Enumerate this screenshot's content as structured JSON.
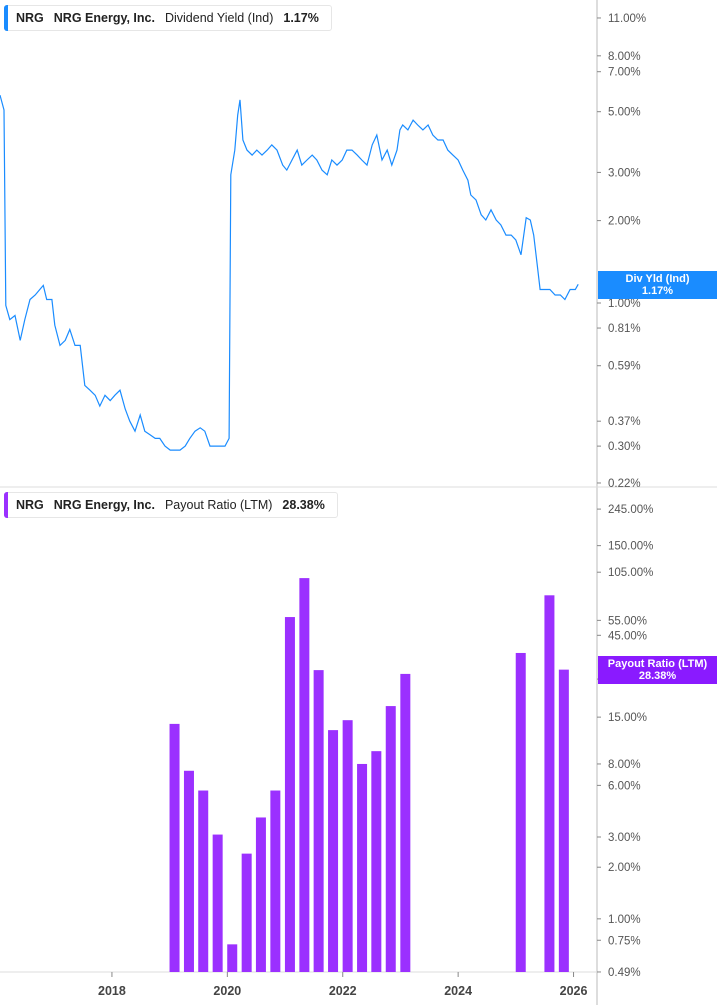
{
  "colors": {
    "line": "#1a8cff",
    "bars": "#9b30ff",
    "tag_line": "#1a8cff",
    "tag_bars": "#8a1aff"
  },
  "top_legend": {
    "ticker": "NRG",
    "company": "NRG Energy, Inc.",
    "metric": "Dividend Yield (Ind)",
    "value": "1.17%"
  },
  "bottom_legend": {
    "ticker": "NRG",
    "company": "NRG Energy, Inc.",
    "metric": "Payout Ratio (LTM)",
    "value": "28.38%"
  },
  "top_tag": {
    "label": "Div Yld (Ind)",
    "value": "1.17%"
  },
  "bottom_tag": {
    "label": "Payout Ratio (LTM)",
    "value": "28.38%"
  },
  "chart_data": [
    {
      "type": "line",
      "series_name": "Dividend Yield (Ind)",
      "y_scale": "log",
      "ylim": [
        0.21,
        13
      ],
      "y_ticks": [
        "11.00%",
        "8.00%",
        "7.00%",
        "5.00%",
        "3.00%",
        "2.00%",
        "1.00%",
        "0.81%",
        "0.59%",
        "0.37%",
        "0.30%",
        "0.22%"
      ],
      "y_tick_values": [
        11,
        8,
        7,
        5,
        3,
        2,
        1,
        0.81,
        0.59,
        0.37,
        0.3,
        0.22
      ],
      "x": [
        2016.06,
        2016.13,
        2016.16,
        2016.23,
        2016.32,
        2016.41,
        2016.49,
        2016.58,
        2016.67,
        2016.75,
        2016.81,
        2016.87,
        2016.96,
        2017.01,
        2017.1,
        2017.19,
        2017.27,
        2017.36,
        2017.45,
        2017.53,
        2017.62,
        2017.71,
        2017.79,
        2017.88,
        2017.97,
        2018.05,
        2018.14,
        2018.23,
        2018.31,
        2018.4,
        2018.49,
        2018.57,
        2018.66,
        2018.75,
        2018.83,
        2018.92,
        2019.01,
        2019.09,
        2019.18,
        2019.27,
        2019.35,
        2019.44,
        2019.53,
        2019.61,
        2019.7,
        2019.79,
        2019.87,
        2019.96,
        2020.03,
        2020.06,
        2020.13,
        2020.18,
        2020.22,
        2020.27,
        2020.34,
        2020.43,
        2020.51,
        2020.6,
        2020.69,
        2020.77,
        2020.86,
        2020.96,
        2021.03,
        2021.12,
        2021.21,
        2021.29,
        2021.38,
        2021.47,
        2021.55,
        2021.64,
        2021.73,
        2021.81,
        2021.9,
        2021.99,
        2022.07,
        2022.16,
        2022.25,
        2022.33,
        2022.42,
        2022.51,
        2022.59,
        2022.68,
        2022.77,
        2022.85,
        2022.94,
        2022.99,
        2023.04,
        2023.13,
        2023.22,
        2023.3,
        2023.39,
        2023.48,
        2023.56,
        2023.65,
        2023.74,
        2023.82,
        2023.91,
        2024.0,
        2024.08,
        2024.17,
        2024.22,
        2024.31,
        2024.4,
        2024.48,
        2024.57,
        2024.66,
        2024.74,
        2024.83,
        2024.92,
        2025.0,
        2025.09,
        2025.18,
        2025.25,
        2025.31,
        2025.37,
        2025.42,
        2025.51,
        2025.59,
        2025.68,
        2025.77,
        2025.85,
        2025.94,
        2026.03,
        2026.08
      ],
      "y": [
        5.75,
        5.07,
        0.98,
        0.87,
        0.9,
        0.73,
        0.87,
        1.03,
        1.07,
        1.12,
        1.16,
        1.03,
        1.03,
        0.83,
        0.7,
        0.73,
        0.8,
        0.7,
        0.7,
        0.5,
        0.48,
        0.46,
        0.42,
        0.46,
        0.44,
        0.46,
        0.48,
        0.41,
        0.37,
        0.34,
        0.39,
        0.34,
        0.33,
        0.32,
        0.32,
        0.3,
        0.29,
        0.29,
        0.29,
        0.3,
        0.32,
        0.34,
        0.35,
        0.34,
        0.3,
        0.3,
        0.3,
        0.3,
        0.32,
        2.94,
        3.62,
        4.86,
        5.52,
        3.94,
        3.62,
        3.47,
        3.62,
        3.47,
        3.62,
        3.78,
        3.62,
        3.19,
        3.06,
        3.33,
        3.62,
        3.19,
        3.33,
        3.47,
        3.33,
        3.06,
        2.94,
        3.33,
        3.19,
        3.33,
        3.62,
        3.62,
        3.47,
        3.33,
        3.19,
        3.78,
        4.11,
        3.33,
        3.62,
        3.19,
        3.62,
        4.29,
        4.47,
        4.29,
        4.66,
        4.47,
        4.29,
        4.47,
        4.11,
        3.94,
        3.94,
        3.62,
        3.47,
        3.33,
        3.06,
        2.81,
        2.48,
        2.38,
        2.1,
        2.01,
        2.19,
        2.01,
        1.93,
        1.77,
        1.77,
        1.7,
        1.5,
        2.05,
        2.01,
        1.77,
        1.38,
        1.12,
        1.12,
        1.12,
        1.07,
        1.07,
        1.03,
        1.12,
        1.12,
        1.17
      ]
    },
    {
      "type": "bar",
      "series_name": "Payout Ratio (LTM)",
      "y_scale": "log",
      "ylim": [
        0.49,
        300
      ],
      "y_ticks": [
        "245.00%",
        "150.00%",
        "105.00%",
        "55.00%",
        "45.00%",
        "25.00%",
        "15.00%",
        "8.00%",
        "6.00%",
        "3.00%",
        "2.00%",
        "1.00%",
        "0.75%",
        "0.49%"
      ],
      "y_tick_values": [
        245,
        150,
        105,
        55,
        45,
        25,
        15,
        8,
        6,
        3,
        2,
        1,
        0.75,
        0.49
      ],
      "categories": [
        "2018-12-31",
        "2019-03-31",
        "2019-06-30",
        "2019-09-30",
        "2019-12-31",
        "2020-03-31",
        "2020-06-30",
        "2020-09-30",
        "2020-12-31",
        "2021-03-31",
        "2021-06-30",
        "2021-09-30",
        "2021-12-31",
        "2022-03-31",
        "2022-06-30",
        "2022-09-30",
        "2022-12-31",
        "2024-12-31",
        "2025-06-30",
        "2025-09-30"
      ],
      "values": [
        13.7,
        7.3,
        5.6,
        3.1,
        0.71,
        2.4,
        3.9,
        5.6,
        57.5,
        97,
        28.2,
        12.6,
        14.4,
        8.0,
        9.5,
        17.4,
        26.8,
        35.5,
        77,
        28.38
      ]
    }
  ],
  "x_axis": {
    "ticks": [
      "2018",
      "2020",
      "2022",
      "2024",
      "2026"
    ],
    "tick_values": [
      2018,
      2020,
      2022,
      2024,
      2026
    ]
  }
}
